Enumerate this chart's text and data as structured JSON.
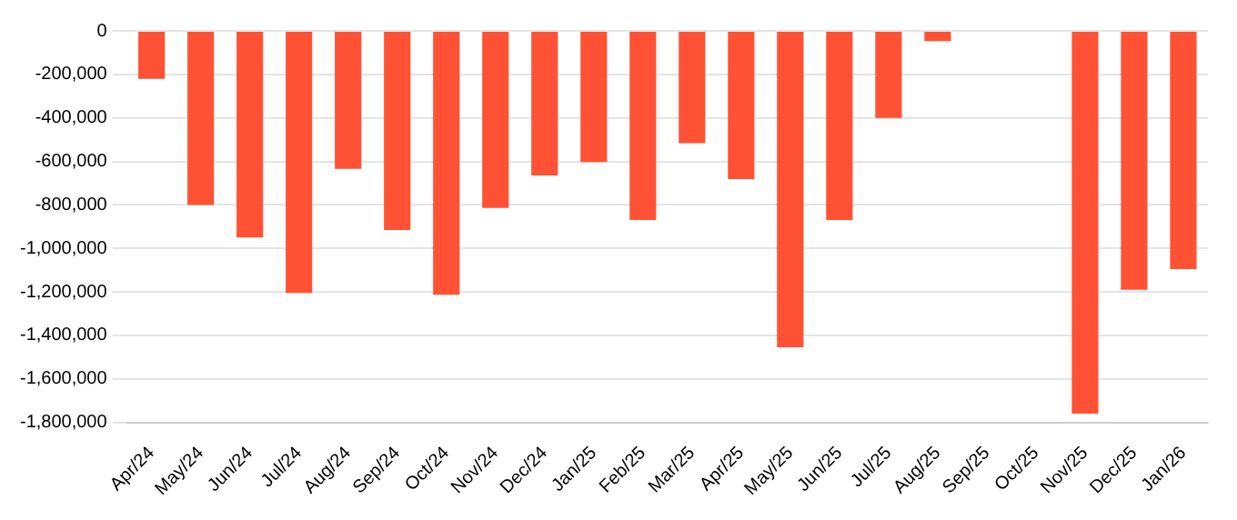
{
  "chart_data": {
    "type": "bar",
    "categories": [
      "Apr/24",
      "May/24",
      "Jun/24",
      "Jul/24",
      "Aug/24",
      "Sep/24",
      "Oct/24",
      "Nov/24",
      "Dec/24",
      "Jan/25",
      "Feb/25",
      "Mar/25",
      "Apr/25",
      "May/25",
      "Jun/25",
      "Jul/25",
      "Aug/25",
      "Sep/25",
      "Oct/25",
      "Nov/25",
      "Dec/25",
      "Jan/26"
    ],
    "values": [
      -220000,
      -800000,
      -950000,
      -1205000,
      -634000,
      -915000,
      -1213000,
      -814000,
      -665000,
      -603000,
      -869000,
      -516000,
      -681000,
      -1455000,
      -869000,
      -400000,
      -47000,
      0,
      0,
      -1760000,
      -1190000,
      -1095000
    ],
    "color": "#ff5235",
    "ylim": [
      -1800000,
      0
    ],
    "yticks": [
      {
        "value": -1800000,
        "label": "-1,800,000"
      },
      {
        "value": -1600000,
        "label": "-1,600,000"
      },
      {
        "value": -1400000,
        "label": "-1,400,000"
      },
      {
        "value": -1200000,
        "label": "-1,200,000"
      },
      {
        "value": -1000000,
        "label": "-1,000,000"
      },
      {
        "value": -800000,
        "label": "-800,000"
      },
      {
        "value": -600000,
        "label": "-600,000"
      },
      {
        "value": -400000,
        "label": "-400,000"
      },
      {
        "value": -200000,
        "label": "-200,000"
      },
      0
    ],
    "grid": "y",
    "legend": false
  }
}
